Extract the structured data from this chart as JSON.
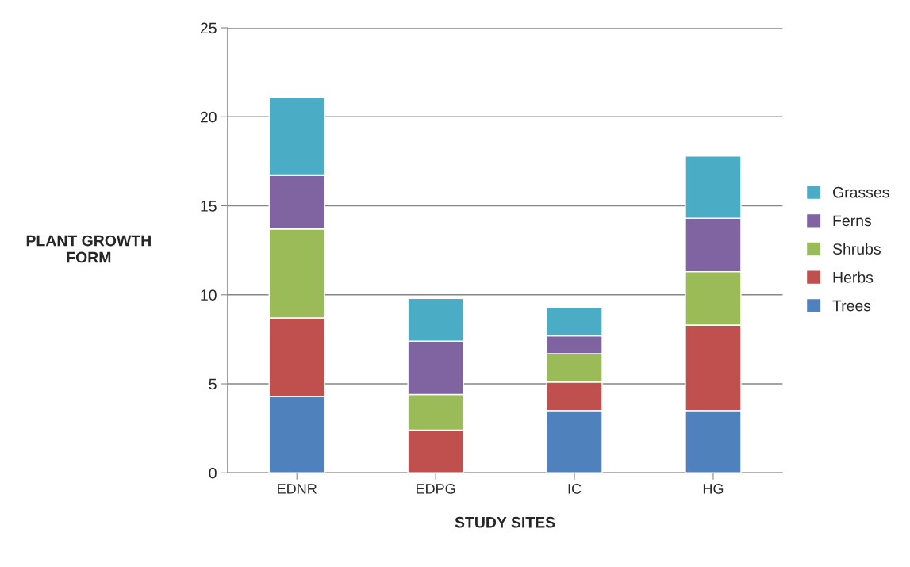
{
  "chart_data": {
    "type": "bar",
    "stacked": true,
    "xlabel": "STUDY SITES",
    "ylabel": "PLANT GROWTH\nFORM",
    "categories": [
      "EDNR",
      "EDPG",
      "IC",
      "HG"
    ],
    "series": [
      {
        "name": "Trees",
        "color": "#4f81bd",
        "values": [
          4.3,
          0,
          3.5,
          3.5
        ]
      },
      {
        "name": "Herbs",
        "color": "#c0504d",
        "values": [
          4.4,
          2.4,
          1.6,
          4.8
        ]
      },
      {
        "name": "Shrubs",
        "color": "#9bbb59",
        "values": [
          5.0,
          2.0,
          1.6,
          3.0
        ]
      },
      {
        "name": "Ferns",
        "color": "#8064a2",
        "values": [
          3.0,
          3.0,
          1.0,
          3.0
        ]
      },
      {
        "name": "Grasses",
        "color": "#4bacc6",
        "values": [
          4.4,
          2.4,
          1.6,
          3.5
        ]
      }
    ],
    "ylim": [
      0,
      25
    ],
    "yticks": [
      0,
      5,
      10,
      15,
      20,
      25
    ],
    "grid": "y",
    "legend": "right"
  }
}
